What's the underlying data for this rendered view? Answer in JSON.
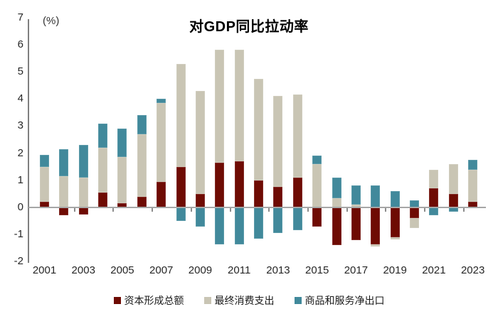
{
  "chart_data": {
    "type": "bar",
    "stacked": true,
    "title": "对GDP同比拉动率",
    "unit_label": "(%)",
    "categories": [
      2001,
      2002,
      2003,
      2004,
      2005,
      2006,
      2007,
      2008,
      2009,
      2010,
      2011,
      2012,
      2013,
      2014,
      2015,
      2016,
      2017,
      2018,
      2019,
      2020,
      2021,
      2022,
      2023
    ],
    "x_tick_labels": [
      "2001",
      "2003",
      "2005",
      "2007",
      "2009",
      "2011",
      "2013",
      "2015",
      "2017",
      "2019",
      "2021",
      "2023"
    ],
    "series": [
      {
        "name": "资本形成总额",
        "color": "#6E0B03",
        "values": [
          0.2,
          -0.3,
          -0.25,
          0.55,
          0.15,
          0.4,
          0.95,
          1.5,
          0.5,
          1.65,
          1.7,
          1.0,
          0.75,
          1.1,
          -0.7,
          -1.4,
          -1.2,
          -1.35,
          -1.1,
          -0.4,
          0.7,
          0.5,
          0.2
        ]
      },
      {
        "name": "最终消费支出",
        "color": "#C9C5B4",
        "values": [
          1.3,
          1.15,
          1.1,
          1.65,
          1.7,
          2.3,
          2.9,
          3.8,
          3.8,
          4.15,
          4.1,
          3.75,
          3.35,
          3.05,
          1.6,
          0.35,
          0.1,
          -0.1,
          -0.08,
          -0.35,
          0.7,
          1.1,
          1.2
        ]
      },
      {
        "name": "商品和服务净出口",
        "color": "#41899B",
        "values": [
          0.45,
          1.0,
          1.2,
          0.9,
          1.05,
          0.7,
          0.15,
          -0.5,
          -0.7,
          -1.35,
          -1.35,
          -1.15,
          -0.95,
          -0.85,
          0.3,
          0.75,
          0.7,
          0.8,
          0.6,
          0.25,
          -0.3,
          -0.15,
          0.35
        ]
      }
    ],
    "ylim": [
      -2,
      7
    ],
    "y_ticks": [
      7,
      6,
      5,
      4,
      3,
      2,
      1,
      0,
      -1,
      -2
    ],
    "grid": false,
    "legend_position": "bottom"
  }
}
